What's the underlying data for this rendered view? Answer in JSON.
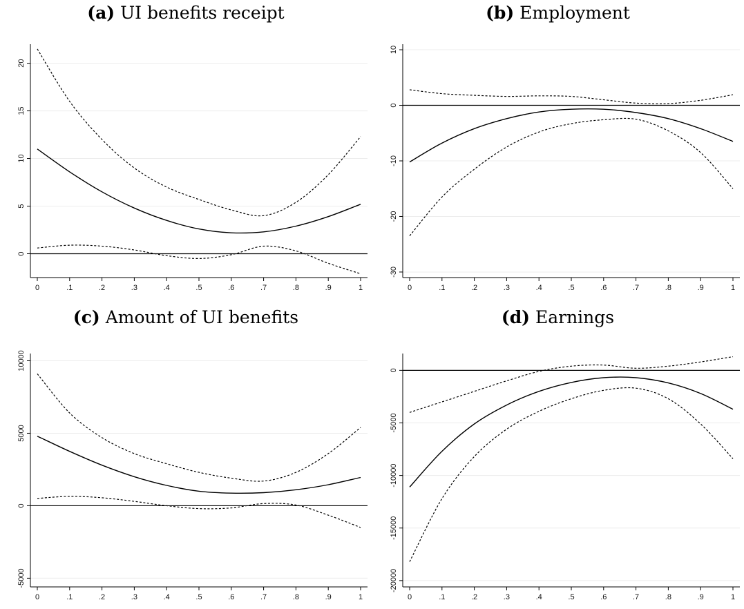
{
  "chart_data": [
    {
      "type": "line",
      "label": "(a)",
      "title": "UI benefits receipt",
      "x": [
        0,
        0.1,
        0.2,
        0.3,
        0.4,
        0.5,
        0.6,
        0.7,
        0.8,
        0.9,
        1
      ],
      "xticks": [
        "0",
        ".1",
        ".2",
        ".3",
        ".4",
        ".5",
        ".6",
        ".7",
        ".8",
        ".9",
        "1"
      ],
      "yticks": [
        0,
        5,
        10,
        15,
        20
      ],
      "ytick_labels": [
        "0",
        "5",
        "10",
        "15",
        "20"
      ],
      "ylim": [
        -2.5,
        22
      ],
      "reference_line": 0,
      "series": [
        {
          "style": "solid",
          "values": [
            11.0,
            8.6,
            6.5,
            4.8,
            3.5,
            2.6,
            2.2,
            2.3,
            2.9,
            3.9,
            5.2
          ]
        },
        {
          "style": "dashed",
          "values": [
            21.5,
            16.0,
            12.0,
            9.0,
            7.0,
            5.7,
            4.6,
            4.0,
            5.4,
            8.3,
            12.3
          ]
        },
        {
          "style": "dashed",
          "values": [
            0.6,
            0.9,
            0.8,
            0.4,
            -0.2,
            -0.5,
            -0.1,
            0.8,
            0.3,
            -1.0,
            -2.1
          ]
        }
      ]
    },
    {
      "type": "line",
      "label": "(b)",
      "title": "Employment",
      "x": [
        0,
        0.1,
        0.2,
        0.3,
        0.4,
        0.5,
        0.6,
        0.7,
        0.8,
        0.9,
        1
      ],
      "xticks": [
        "0",
        ".1",
        ".2",
        ".3",
        ".4",
        ".5",
        ".6",
        ".7",
        ".8",
        ".9",
        "1"
      ],
      "yticks": [
        -30,
        -20,
        -10,
        0,
        10
      ],
      "ytick_labels": [
        "-30",
        "-20",
        "-10",
        "0",
        "10"
      ],
      "ylim": [
        -31,
        11
      ],
      "reference_line": 0,
      "series": [
        {
          "style": "solid",
          "values": [
            -10.2,
            -6.8,
            -4.2,
            -2.4,
            -1.2,
            -0.7,
            -0.7,
            -1.3,
            -2.4,
            -4.2,
            -6.5
          ]
        },
        {
          "style": "dashed",
          "values": [
            2.8,
            2.1,
            1.8,
            1.6,
            1.7,
            1.6,
            1.0,
            0.4,
            0.3,
            0.9,
            1.9
          ]
        },
        {
          "style": "dashed",
          "values": [
            -23.5,
            -16.5,
            -11.5,
            -7.5,
            -4.8,
            -3.3,
            -2.6,
            -2.5,
            -4.6,
            -8.5,
            -15.0
          ]
        }
      ]
    },
    {
      "type": "line",
      "label": "(c)",
      "title": "Amount of UI benefits",
      "x": [
        0,
        0.1,
        0.2,
        0.3,
        0.4,
        0.5,
        0.6,
        0.7,
        0.8,
        0.9,
        1
      ],
      "xticks": [
        "0",
        ".1",
        ".2",
        ".3",
        ".4",
        ".5",
        ".6",
        ".7",
        ".8",
        ".9",
        "1"
      ],
      "yticks": [
        -5000,
        0,
        5000,
        10000
      ],
      "ytick_labels": [
        "-5000",
        "0",
        "5000",
        "10000"
      ],
      "ylim": [
        -5600,
        10500
      ],
      "reference_line": 0,
      "series": [
        {
          "style": "solid",
          "values": [
            4800,
            3750,
            2800,
            2000,
            1400,
            1000,
            870,
            900,
            1100,
            1450,
            1950
          ]
        },
        {
          "style": "dashed",
          "values": [
            9100,
            6400,
            4700,
            3600,
            2900,
            2300,
            1900,
            1700,
            2300,
            3600,
            5400
          ]
        },
        {
          "style": "dashed",
          "values": [
            500,
            650,
            550,
            300,
            0,
            -200,
            -150,
            150,
            50,
            -650,
            -1500
          ]
        }
      ]
    },
    {
      "type": "line",
      "label": "(d)",
      "title": "Earnings",
      "x": [
        0,
        0.1,
        0.2,
        0.3,
        0.4,
        0.5,
        0.6,
        0.7,
        0.8,
        0.9,
        1
      ],
      "xticks": [
        "0",
        ".1",
        ".2",
        ".3",
        ".4",
        ".5",
        ".6",
        ".7",
        ".8",
        ".9",
        "1"
      ],
      "yticks": [
        -20000,
        -15000,
        -10000,
        -5000,
        0
      ],
      "ytick_labels": [
        "-20000",
        "-15000",
        "-10000",
        "-5000",
        "0"
      ],
      "ylim": [
        -20600,
        1600
      ],
      "reference_line": 0,
      "series": [
        {
          "style": "solid",
          "values": [
            -11100,
            -7700,
            -5100,
            -3300,
            -2000,
            -1150,
            -700,
            -700,
            -1200,
            -2200,
            -3700
          ]
        },
        {
          "style": "dashed",
          "values": [
            -4000,
            -3000,
            -2000,
            -1000,
            -100,
            400,
            500,
            200,
            400,
            800,
            1300
          ]
        },
        {
          "style": "dashed",
          "values": [
            -18200,
            -12200,
            -8200,
            -5600,
            -3900,
            -2700,
            -1900,
            -1700,
            -2700,
            -5100,
            -8400
          ]
        }
      ]
    }
  ]
}
